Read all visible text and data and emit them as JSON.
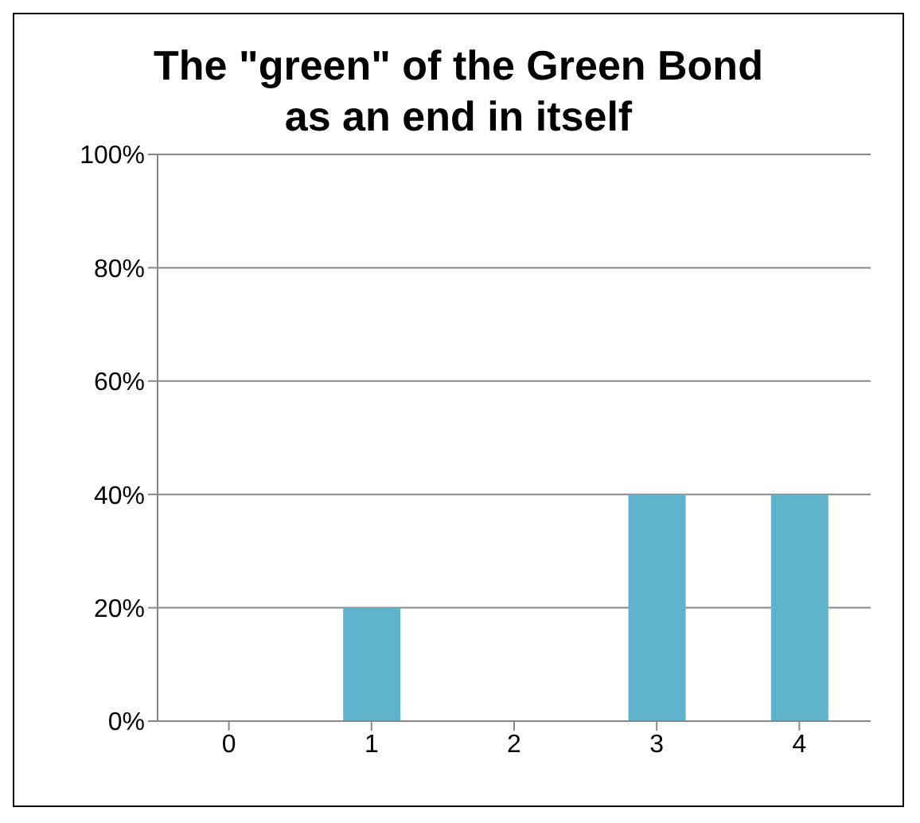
{
  "chart_data": {
    "type": "bar",
    "title": "The \"green\" of the Green Bond as an end in itself",
    "categories": [
      "0",
      "1",
      "2",
      "3",
      "4"
    ],
    "values": [
      0,
      20,
      0,
      40,
      40
    ],
    "color": "#5fb3cc",
    "ylim": [
      0,
      100
    ],
    "yticks": [
      {
        "value": 0,
        "label": "0%"
      },
      {
        "value": 20,
        "label": "20%"
      },
      {
        "value": 40,
        "label": "40%"
      },
      {
        "value": 60,
        "label": "60%"
      },
      {
        "value": 80,
        "label": "80%"
      },
      {
        "value": 100,
        "label": "100%"
      }
    ],
    "grid": "y",
    "legend": false
  }
}
